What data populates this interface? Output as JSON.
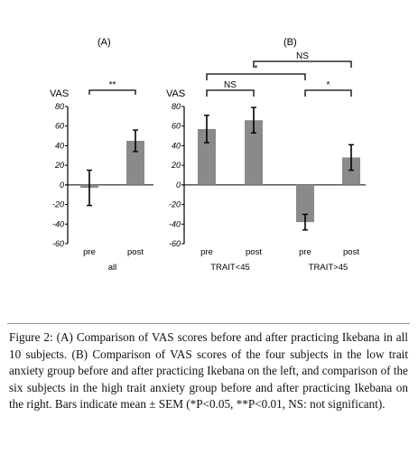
{
  "figure": {
    "panel_a_label": "(A)",
    "panel_b_label": "(B)",
    "caption_title": "Figure 2:",
    "caption_text": " (A) Comparison of VAS scores before and after practicing Ikebana in all 10 subjects. (B) Comparison of VAS scores of the four subjects in the low trait anxiety group before and after practicing Ikebana on the left, and comparison of the six subjects in the high trait anxiety group before and after practicing Ikebana on the right. Bars indicate mean ± SEM (*P<0.05, **P<0.01, NS: not significant)."
  },
  "chart_data": [
    {
      "type": "bar",
      "panel": "(A)",
      "ylabel": "VAS",
      "ylim": [
        -60,
        80
      ],
      "yticks": [
        80,
        60,
        40,
        20,
        0,
        -20,
        -40,
        -60
      ],
      "tick_labels": [
        "80",
        "60",
        "40",
        "20",
        "0",
        "-20",
        "-40",
        "-60"
      ],
      "groups": [
        {
          "label": "all",
          "categories": [
            "pre",
            "post"
          ],
          "values": [
            -3,
            45
          ],
          "sem": [
            18,
            11
          ]
        }
      ],
      "annotations": [
        {
          "between": [
            "pre",
            "post"
          ],
          "text": "**"
        }
      ],
      "bar_color": "#8a8a8a"
    },
    {
      "type": "bar",
      "panel": "(B)",
      "ylabel": "VAS",
      "ylim": [
        -60,
        80
      ],
      "yticks": [
        80,
        60,
        40,
        20,
        0,
        -20,
        -40,
        -60
      ],
      "tick_labels": [
        "80",
        "60",
        "40",
        "20",
        "0",
        "-20",
        "-40",
        "-60"
      ],
      "groups": [
        {
          "label": "TRAIT<45",
          "categories": [
            "pre",
            "post"
          ],
          "values": [
            57,
            66
          ],
          "sem": [
            14,
            13
          ]
        },
        {
          "label": "TRAIT>45",
          "categories": [
            "pre",
            "post"
          ],
          "values": [
            -38,
            28
          ],
          "sem": [
            8,
            13
          ]
        }
      ],
      "annotations": [
        {
          "between": [
            "TRAIT<45 pre",
            "TRAIT<45 post"
          ],
          "text": "NS"
        },
        {
          "between": [
            "TRAIT>45 pre",
            "TRAIT>45 post"
          ],
          "text": "*"
        },
        {
          "between": [
            "TRAIT<45 pre",
            "TRAIT>45 pre"
          ],
          "text": "*"
        },
        {
          "between": [
            "TRAIT<45 post",
            "TRAIT>45 post"
          ],
          "text": "NS"
        }
      ],
      "bar_color": "#8a8a8a"
    }
  ]
}
